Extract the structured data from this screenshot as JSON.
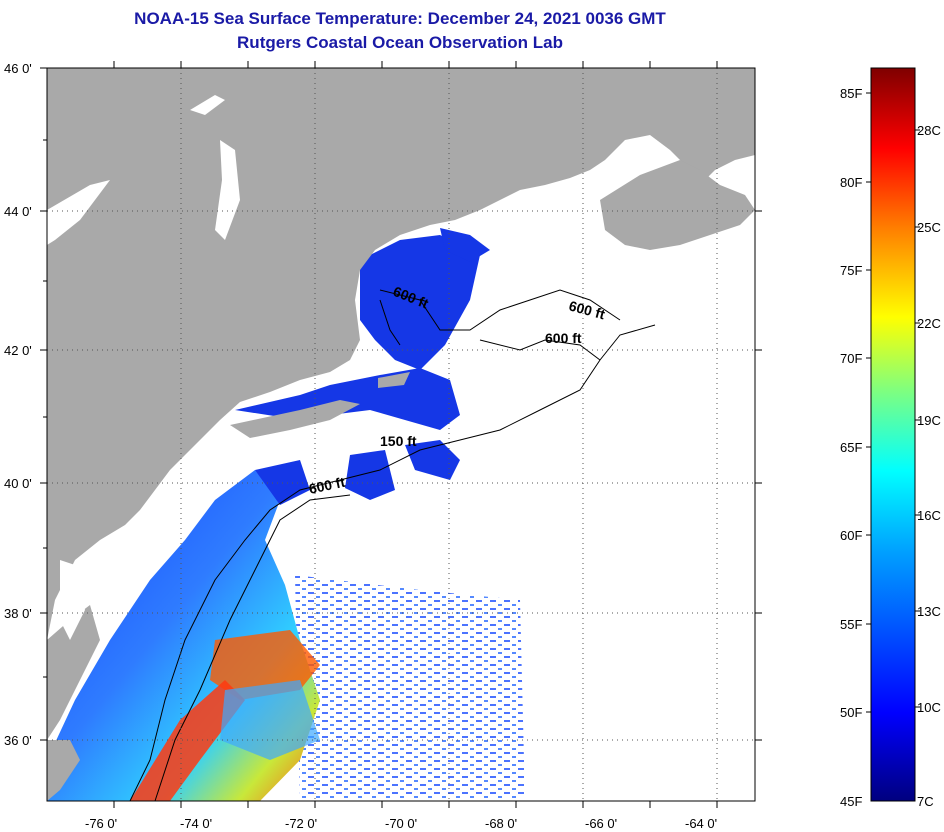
{
  "header": {
    "title": "NOAA-15 Sea Surface Temperature:  December 24, 2021 0036 GMT",
    "subtitle": "Rutgers Coastal Ocean Observation Lab"
  },
  "map": {
    "lat_ticks": [
      "46 0'",
      "44 0'",
      "42 0'",
      "40 0'",
      "38 0'",
      "36 0'"
    ],
    "lon_ticks": [
      "-76 0'",
      "-74 0'",
      "-72 0'",
      "-70 0'",
      "-68 0'",
      "-66 0'",
      "-64 0'"
    ],
    "contours": [
      "600 ft",
      "600 ft",
      "600 ft",
      "150 ft",
      "600 ft"
    ],
    "colors": {
      "land": "#a9a9a9",
      "cloud": "#ffffff",
      "contour": "#000000"
    }
  },
  "colorbar": {
    "fahrenheit": [
      "85F",
      "80F",
      "75F",
      "70F",
      "65F",
      "60F",
      "55F",
      "50F",
      "45F"
    ],
    "celsius": [
      "28C",
      "25C",
      "22C",
      "19C",
      "16C",
      "13C",
      "10C",
      "7C"
    ]
  }
}
